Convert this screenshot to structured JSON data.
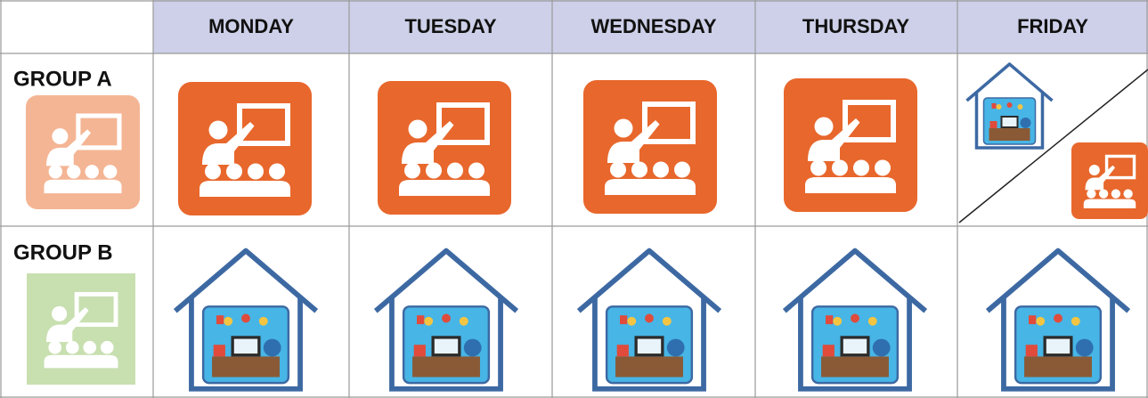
{
  "header": {
    "days": [
      "MONDAY",
      "TUESDAY",
      "WEDNESDAY",
      "THURSDAY",
      "FRIDAY"
    ]
  },
  "rows": [
    {
      "label": "GROUP A"
    },
    {
      "label": "GROUP B"
    }
  ]
}
